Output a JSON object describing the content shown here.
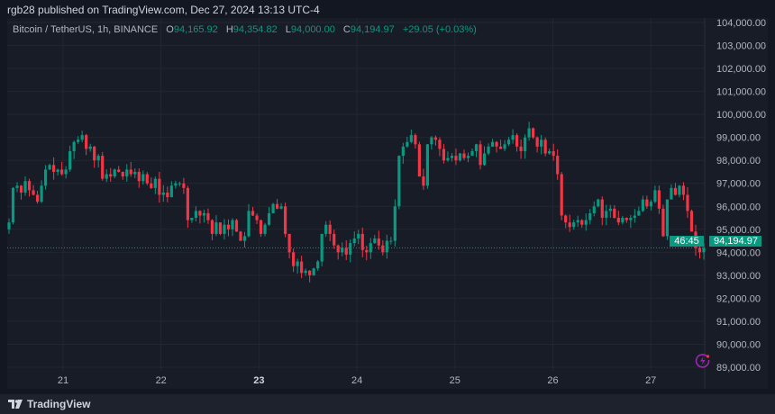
{
  "header": {
    "published": "rgb28 published on TradingView.com, Dec 27, 2024 13:13 UTC-4"
  },
  "legend": {
    "symbol": "Bitcoin / TetherUS, 1h, BINANCE",
    "open_label": "O",
    "open": "94,165.92",
    "high_label": "H",
    "high": "94,354.82",
    "low_label": "L",
    "low": "94,000.00",
    "close_label": "C",
    "close": "94,194.97",
    "change": "+29.05 (+0.03%)"
  },
  "price_label": {
    "price": "94,194.97",
    "countdown": "46:45"
  },
  "footer": {
    "logo_text": "TradingView"
  },
  "colors": {
    "up": "#089981",
    "down": "#f23645",
    "bg": "#181c27"
  },
  "chart_data": {
    "type": "candlestick",
    "title": "Bitcoin / TetherUS, 1h, BINANCE",
    "ylim": [
      89000,
      104000
    ],
    "y_ticks": [
      "104,000.00",
      "103,000.00",
      "102,000.00",
      "101,000.00",
      "100,000.00",
      "99,000.00",
      "98,000.00",
      "97,000.00",
      "96,000.00",
      "95,000.00",
      "94,000.00",
      "93,000.00",
      "92,000.00",
      "91,000.00",
      "90,000.00",
      "89,000.00"
    ],
    "x_ticks": [
      {
        "label": "21",
        "bold": false
      },
      {
        "label": "22",
        "bold": false
      },
      {
        "label": "23",
        "bold": true
      },
      {
        "label": "24",
        "bold": false
      },
      {
        "label": "25",
        "bold": false
      },
      {
        "label": "26",
        "bold": false
      },
      {
        "label": "27",
        "bold": false
      }
    ],
    "last_price": 94194.97,
    "open_first": 95000,
    "closes": [
      95300,
      96800,
      96900,
      96600,
      97100,
      96700,
      96500,
      96200,
      96900,
      97600,
      97800,
      97500,
      97600,
      97400,
      97600,
      98400,
      98800,
      98900,
      99100,
      98500,
      98600,
      98000,
      98200,
      97200,
      97400,
      97300,
      97600,
      97500,
      97300,
      97600,
      97400,
      97500,
      97100,
      97400,
      97000,
      96800,
      97200,
      96500,
      96600,
      96400,
      96900,
      97000,
      97000,
      96800,
      95400,
      95500,
      95800,
      95600,
      95700,
      95400,
      94800,
      95300,
      94800,
      95200,
      95000,
      95400,
      94900,
      94500,
      94700,
      95800,
      95600,
      95400,
      94800,
      95200,
      95700,
      96100,
      95900,
      96000,
      94800,
      94000,
      93400,
      93600,
      93100,
      93200,
      93000,
      93300,
      93600,
      94800,
      95200,
      94800,
      94300,
      94000,
      94200,
      93900,
      94400,
      94600,
      94800,
      94100,
      94000,
      94400,
      94600,
      94300,
      94000,
      94500,
      94500,
      96000,
      98200,
      98600,
      98800,
      99100,
      98700,
      97300,
      96900,
      98700,
      99000,
      98900,
      98500,
      98000,
      98100,
      98200,
      98000,
      98300,
      98100,
      98200,
      98400,
      98700,
      97800,
      98300,
      98600,
      98800,
      98600,
      98500,
      98700,
      98900,
      99100,
      98600,
      98400,
      99000,
      99400,
      99000,
      98600,
      98900,
      98300,
      98400,
      98200,
      97400,
      95600,
      95300,
      95100,
      95300,
      95400,
      95200,
      95400,
      95700,
      96000,
      96300,
      95500,
      95800,
      95900,
      95500,
      95300,
      95500,
      95400,
      95500,
      95600,
      95800,
      96300,
      96000,
      96200,
      96700,
      95900,
      94700,
      96300,
      96800,
      96500,
      96900,
      96500,
      95800,
      94900,
      94200,
      94000,
      94194.97
    ]
  }
}
